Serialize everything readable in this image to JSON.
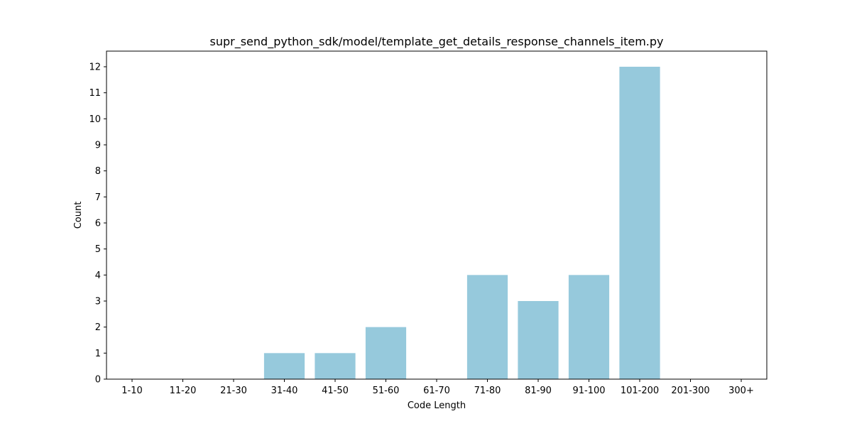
{
  "chart_data": {
    "type": "bar",
    "title": "supr_send_python_sdk/model/template_get_details_response_channels_item.py",
    "xlabel": "Code Length",
    "ylabel": "Count",
    "categories": [
      "1-10",
      "11-20",
      "21-30",
      "31-40",
      "41-50",
      "51-60",
      "61-70",
      "71-80",
      "81-90",
      "91-100",
      "101-200",
      "201-300",
      "300+"
    ],
    "values": [
      0,
      0,
      0,
      1,
      1,
      2,
      0,
      4,
      3,
      4,
      12,
      0,
      0
    ],
    "yticks": [
      0,
      1,
      2,
      3,
      4,
      5,
      6,
      7,
      8,
      9,
      10,
      11,
      12
    ],
    "ylim": [
      0,
      12.6
    ],
    "grid": false,
    "bar_color": "#96c9dc"
  }
}
